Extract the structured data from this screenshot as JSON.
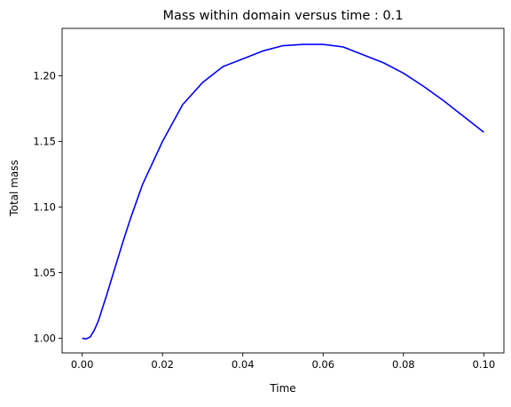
{
  "chart_data": {
    "type": "line",
    "title": "Mass within domain versus time : 0.1",
    "xlabel": "Time",
    "ylabel": "Total mass",
    "xlim": [
      -0.005,
      0.105
    ],
    "ylim": [
      0.9888,
      1.2362
    ],
    "x_ticks": [
      0.0,
      0.02,
      0.04,
      0.06,
      0.08,
      0.1
    ],
    "x_tick_labels": [
      "0.00",
      "0.02",
      "0.04",
      "0.06",
      "0.08",
      "0.10"
    ],
    "y_ticks": [
      1.0,
      1.05,
      1.1,
      1.15,
      1.2
    ],
    "y_tick_labels": [
      "1.00",
      "1.05",
      "1.10",
      "1.15",
      "1.20"
    ],
    "grid": false,
    "legend": "none",
    "series": [
      {
        "color": "#0000ff",
        "x": [
          0.0,
          0.001,
          0.002,
          0.003,
          0.004,
          0.006,
          0.008,
          0.01,
          0.012,
          0.015,
          0.02,
          0.025,
          0.03,
          0.035,
          0.04,
          0.045,
          0.05,
          0.055,
          0.06,
          0.065,
          0.07,
          0.075,
          0.08,
          0.085,
          0.09,
          0.095,
          0.1
        ],
        "y": [
          1.0,
          0.9995,
          1.001,
          1.006,
          1.013,
          1.032,
          1.052,
          1.072,
          1.091,
          1.117,
          1.15,
          1.178,
          1.195,
          1.207,
          1.213,
          1.219,
          1.223,
          1.224,
          1.224,
          1.222,
          1.216,
          1.21,
          1.202,
          1.192,
          1.181,
          1.169,
          1.157
        ]
      }
    ]
  }
}
